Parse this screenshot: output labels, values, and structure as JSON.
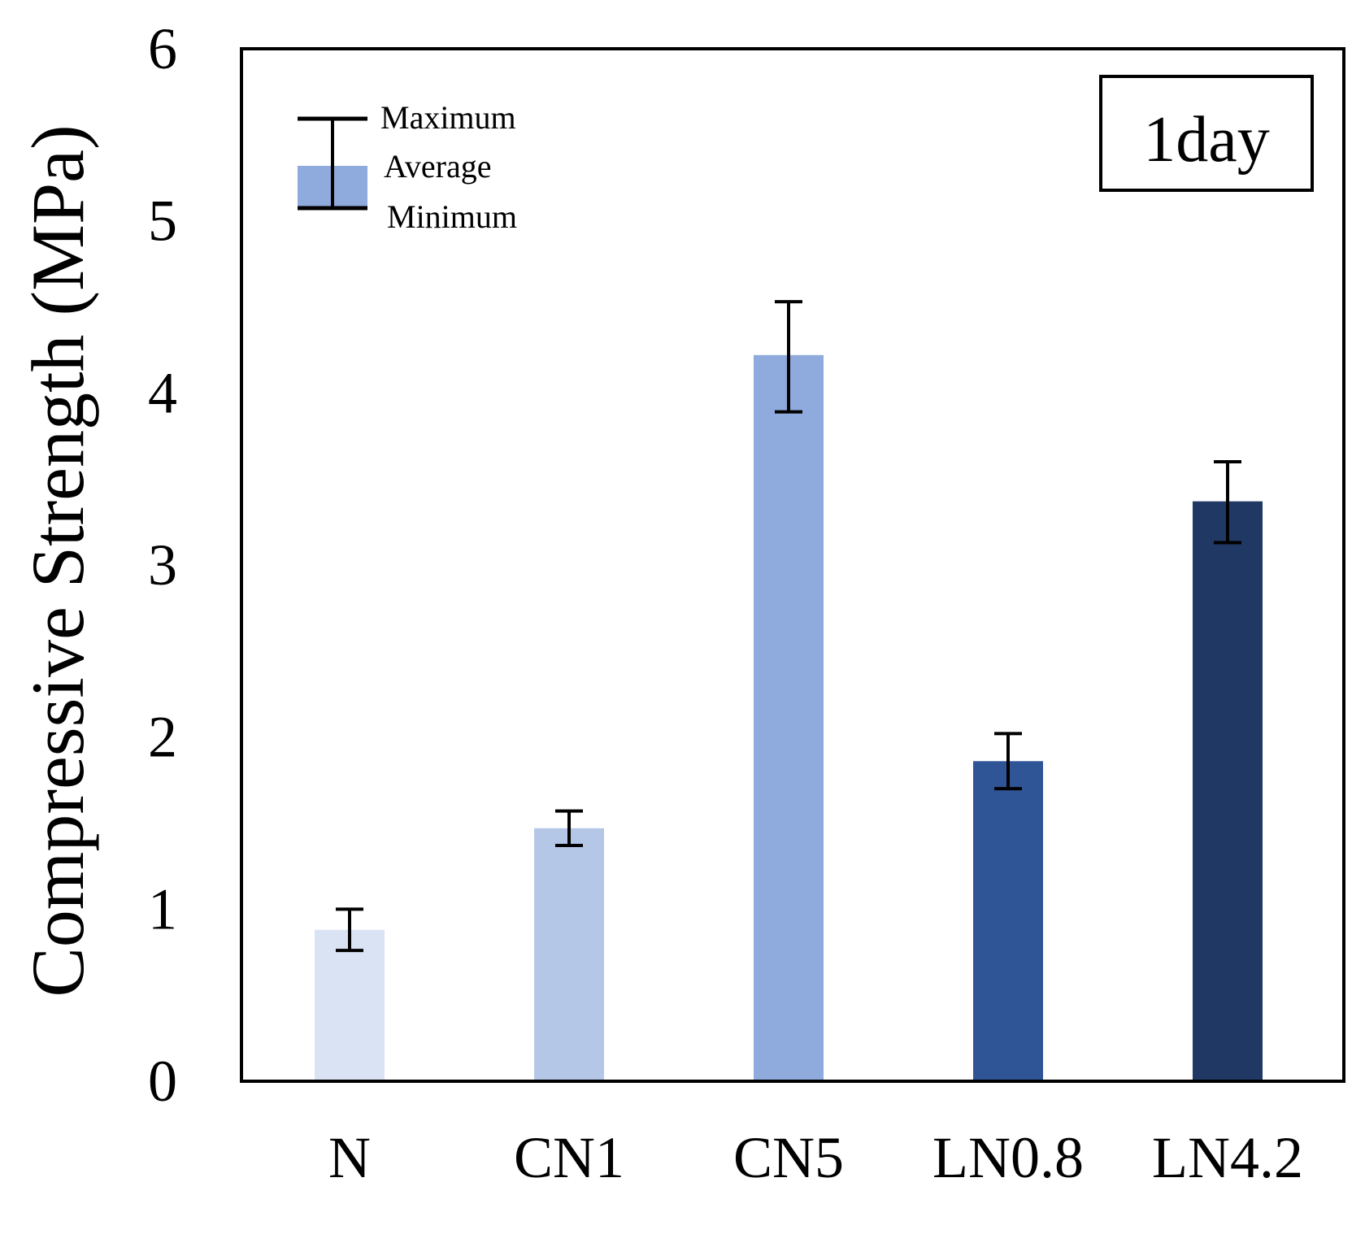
{
  "chart_data": {
    "type": "bar",
    "title": "",
    "xlabel": "",
    "ylabel": "Compressive Strength (MPa)",
    "ylim": [
      0,
      6
    ],
    "yticks": [
      "0",
      "1",
      "2",
      "3",
      "4",
      "5",
      "6"
    ],
    "grid": false,
    "annotation": "1day",
    "categories": [
      "N",
      "CN1",
      "CN5",
      "LN0.8",
      "LN4.2"
    ],
    "values": [
      0.88,
      1.47,
      4.22,
      1.86,
      3.37
    ],
    "max": [
      1.0,
      1.57,
      4.53,
      2.02,
      3.6
    ],
    "min": [
      0.76,
      1.37,
      3.89,
      1.7,
      3.13
    ],
    "bar_colors": [
      "#dae3f3",
      "#b4c7e7",
      "#8faadc",
      "#2f5597",
      "#203864"
    ],
    "legend": {
      "position": "top-left",
      "entries": [
        "Maximum",
        "Average",
        "Minimum"
      ],
      "swatch_color": "#8faadc"
    }
  }
}
